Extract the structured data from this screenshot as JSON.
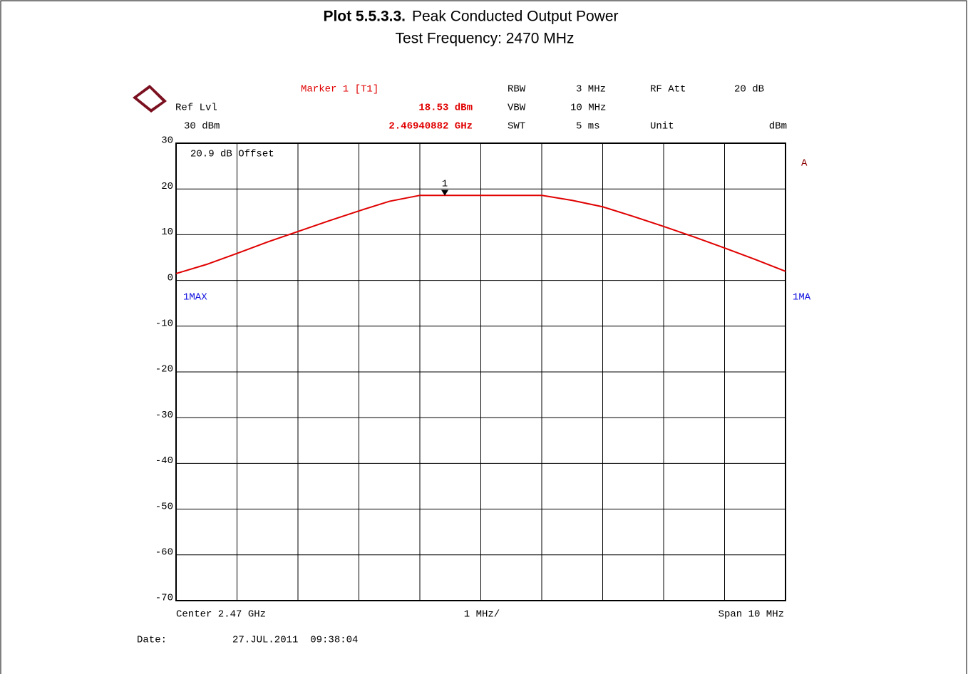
{
  "chart_data": {
    "type": "line",
    "title_bold": "Plot 5.5.3.3.",
    "title": "Peak Conducted Output Power",
    "subtitle": "Test Frequency: 2470 MHz",
    "header": {
      "ref_label": "Ref Lvl",
      "ref_value": "30 dBm",
      "marker_title": "Marker 1 [T1]",
      "marker_level": "18.53 dBm",
      "marker_freq": "2.46940882 GHz",
      "rbw_label": "RBW",
      "rbw_value": "3 MHz",
      "vbw_label": "VBW",
      "vbw_value": "10 MHz",
      "swt_label": "SWT",
      "swt_value": "5 ms",
      "att_label": "RF Att",
      "att_value": "20 dB",
      "unit_label": "Unit",
      "unit_value": "dBm"
    },
    "offset_note": "20.9 dB Offset",
    "side_label_a": "A",
    "side_label_trace": "1MA",
    "x_left_label": "Center 2.47 GHz",
    "x_mid_label": "1 MHz/",
    "x_right_label": "Span 10 MHz",
    "date_label": "Date:",
    "date_value": "27.JUL.2011  09:38:04",
    "ylim": [
      -70,
      30
    ],
    "yticks": [
      30,
      20,
      10,
      0,
      -10,
      -20,
      -30,
      -40,
      -50,
      -60,
      -70
    ],
    "grid": true,
    "series": [
      {
        "name": "1MAX",
        "color": "#e00000",
        "values": [
          1.5,
          3.5,
          5.9,
          8.4,
          10.7,
          13.0,
          15.2,
          17.3,
          18.6,
          18.6,
          18.6,
          18.6,
          18.6,
          17.5,
          16.1,
          14.0,
          11.8,
          9.5,
          7.1,
          4.6,
          2.0
        ]
      }
    ],
    "marker": {
      "label": "1",
      "value": 18.53
    }
  }
}
